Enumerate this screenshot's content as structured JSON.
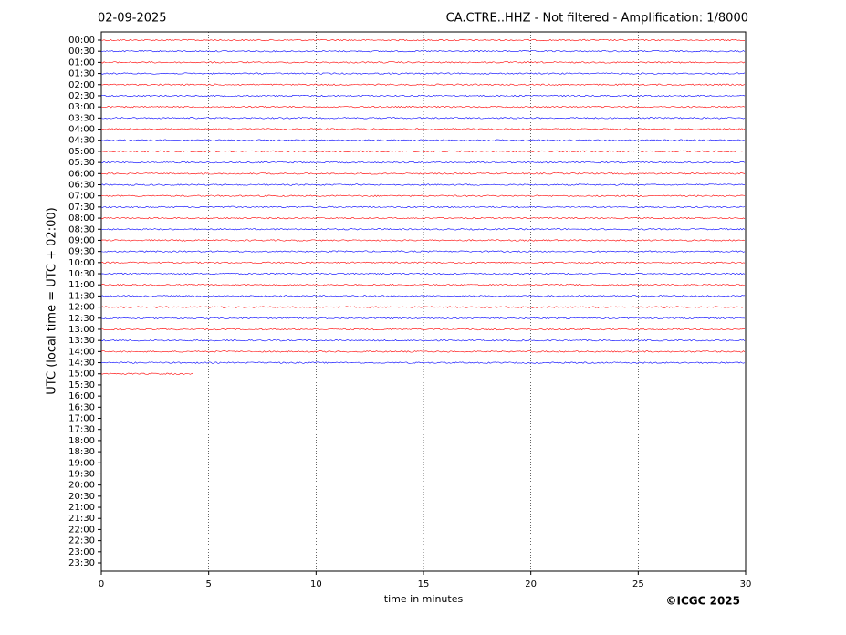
{
  "chart_data": {
    "type": "helicorder",
    "date": "02-09-2025",
    "title": "CA.CTRE..HHZ - Not filtered - Amplification: 1/8000",
    "ylabel": "UTC (local time = UTC + 02:00)",
    "xlabel": "time in minutes",
    "credit": "©ICGC 2025",
    "categories": [
      "00:00",
      "00:30",
      "01:00",
      "01:30",
      "02:00",
      "02:30",
      "03:00",
      "03:30",
      "04:00",
      "04:30",
      "05:00",
      "05:30",
      "06:00",
      "06:30",
      "07:00",
      "07:30",
      "08:00",
      "08:30",
      "09:00",
      "09:30",
      "10:00",
      "10:30",
      "11:00",
      "11:30",
      "12:00",
      "12:30",
      "13:00",
      "13:30",
      "14:00",
      "14:30",
      "15:00",
      "15:30",
      "16:00",
      "16:30",
      "17:00",
      "17:30",
      "18:00",
      "18:30",
      "19:00",
      "19:30",
      "20:00",
      "20:30",
      "21:00",
      "21:30",
      "22:00",
      "22:30",
      "23:00",
      "23:30"
    ],
    "values": [
      30,
      30,
      30,
      30,
      30,
      30,
      30,
      30,
      30,
      30,
      30,
      30,
      30,
      30,
      30,
      30,
      30,
      30,
      30,
      30,
      30,
      30,
      30,
      30,
      30,
      30,
      30,
      30,
      30,
      30,
      4.3,
      null,
      null,
      null,
      null,
      null,
      null,
      null,
      null,
      null,
      null,
      null,
      null,
      null,
      null,
      null,
      null,
      null
    ],
    "trace_colors": [
      "#ff0000",
      "#0000ff"
    ],
    "xlim": [
      0,
      30
    ],
    "xticks": [
      0,
      5,
      10,
      15,
      20,
      25,
      30
    ],
    "grid": true
  }
}
